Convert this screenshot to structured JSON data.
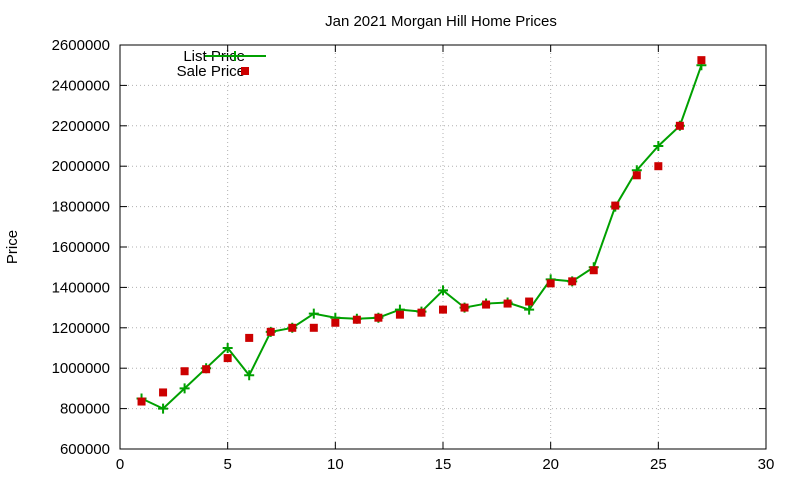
{
  "chart_data": {
    "type": "line",
    "title": "Jan 2021 Morgan Hill Home Prices",
    "xlabel": "",
    "ylabel": "Price",
    "xlim": [
      0,
      30
    ],
    "ylim": [
      600000,
      2600000
    ],
    "xticks": [
      0,
      5,
      10,
      15,
      20,
      25,
      30
    ],
    "yticks": [
      600000,
      800000,
      1000000,
      1200000,
      1400000,
      1600000,
      1800000,
      2000000,
      2200000,
      2400000,
      2600000
    ],
    "grid": true,
    "legend_position": "top-left",
    "series": [
      {
        "name": "List Price",
        "style": "line-with-plus-markers",
        "color": "#00a000",
        "x": [
          1,
          2,
          3,
          4,
          5,
          6,
          7,
          8,
          9,
          10,
          11,
          12,
          13,
          14,
          15,
          16,
          17,
          18,
          19,
          20,
          21,
          22,
          23,
          24,
          25,
          26,
          27
        ],
        "y": [
          850000,
          800000,
          900000,
          1000000,
          1100000,
          965000,
          1180000,
          1200000,
          1270000,
          1250000,
          1245000,
          1250000,
          1290000,
          1280000,
          1385000,
          1300000,
          1320000,
          1325000,
          1290000,
          1440000,
          1430000,
          1500000,
          1800000,
          1980000,
          2100000,
          2200000,
          2500000
        ]
      },
      {
        "name": "Sale Price",
        "style": "square-points",
        "color": "#cc0000",
        "x": [
          1,
          2,
          3,
          4,
          5,
          6,
          7,
          8,
          9,
          10,
          11,
          12,
          13,
          14,
          15,
          16,
          17,
          18,
          19,
          20,
          21,
          22,
          23,
          24,
          25,
          26,
          27
        ],
        "y": [
          835000,
          880000,
          985000,
          995000,
          1050000,
          1150000,
          1180000,
          1200000,
          1200000,
          1225000,
          1240000,
          1250000,
          1265000,
          1275000,
          1290000,
          1300000,
          1315000,
          1320000,
          1330000,
          1420000,
          1430000,
          1485000,
          1805000,
          1955000,
          2000000,
          2200000,
          2525000
        ]
      }
    ]
  }
}
